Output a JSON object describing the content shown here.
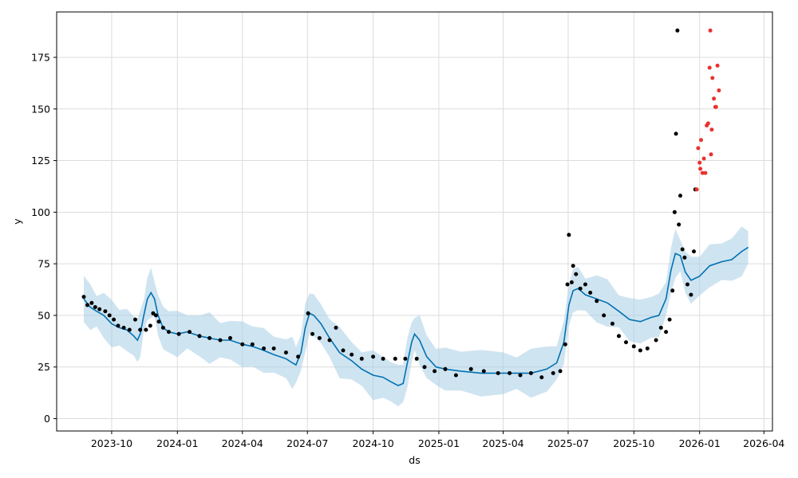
{
  "chart_data": {
    "type": "line",
    "title": "",
    "xlabel": "ds",
    "ylabel": "y",
    "x_ticks": [
      "2023-10",
      "2024-01",
      "2024-04",
      "2024-07",
      "2024-10",
      "2025-01",
      "2025-04",
      "2025-07",
      "2025-10",
      "2026-01",
      "2026-04"
    ],
    "y_ticks": [
      0,
      25,
      50,
      75,
      100,
      125,
      150,
      175
    ],
    "xlim": [
      "2023-07-16",
      "2026-04-13"
    ],
    "ylim": [
      -6,
      197
    ],
    "grid": true,
    "colors": {
      "forecast": "#0072B2",
      "interval": "#A8CDE6",
      "observed": "#000000",
      "outliers": "#E8322F"
    },
    "series": [
      {
        "kind": "line",
        "points": [
          [
            "2023-08-23",
            58
          ],
          [
            "2023-09-01",
            54
          ],
          [
            "2023-09-10",
            52
          ],
          [
            "2023-09-20",
            50
          ],
          [
            "2023-10-01",
            46
          ],
          [
            "2023-10-12",
            44
          ],
          [
            "2023-10-22",
            43
          ],
          [
            "2023-11-01",
            40
          ],
          [
            "2023-11-06",
            38
          ],
          [
            "2023-11-10",
            41
          ],
          [
            "2023-11-15",
            50
          ],
          [
            "2023-11-20",
            58
          ],
          [
            "2023-11-25",
            61
          ],
          [
            "2023-11-30",
            58
          ],
          [
            "2023-12-05",
            50
          ],
          [
            "2023-12-12",
            44
          ],
          [
            "2023-12-20",
            42
          ],
          [
            "2024-01-01",
            41
          ],
          [
            "2024-01-15",
            42
          ],
          [
            "2024-02-01",
            40
          ],
          [
            "2024-02-15",
            39
          ],
          [
            "2024-03-01",
            38
          ],
          [
            "2024-03-15",
            38
          ],
          [
            "2024-04-01",
            36
          ],
          [
            "2024-04-15",
            35
          ],
          [
            "2024-05-01",
            33
          ],
          [
            "2024-05-15",
            31
          ],
          [
            "2024-06-01",
            29
          ],
          [
            "2024-06-10",
            27
          ],
          [
            "2024-06-15",
            26
          ],
          [
            "2024-06-22",
            32
          ],
          [
            "2024-06-28",
            44
          ],
          [
            "2024-07-04",
            51
          ],
          [
            "2024-07-10",
            50
          ],
          [
            "2024-07-20",
            46
          ],
          [
            "2024-08-01",
            39
          ],
          [
            "2024-08-15",
            32
          ],
          [
            "2024-09-01",
            28
          ],
          [
            "2024-09-15",
            24
          ],
          [
            "2024-10-01",
            21
          ],
          [
            "2024-10-15",
            20
          ],
          [
            "2024-10-25",
            18
          ],
          [
            "2024-11-05",
            16
          ],
          [
            "2024-11-12",
            17
          ],
          [
            "2024-11-18",
            27
          ],
          [
            "2024-11-24",
            37
          ],
          [
            "2024-11-28",
            41
          ],
          [
            "2024-12-05",
            38
          ],
          [
            "2024-12-15",
            30
          ],
          [
            "2024-12-28",
            25
          ],
          [
            "2025-01-10",
            24
          ],
          [
            "2025-02-01",
            23
          ],
          [
            "2025-03-01",
            22
          ],
          [
            "2025-04-01",
            22
          ],
          [
            "2025-04-20",
            22
          ],
          [
            "2025-05-10",
            22
          ],
          [
            "2025-06-01",
            24
          ],
          [
            "2025-06-15",
            27
          ],
          [
            "2025-06-25",
            37
          ],
          [
            "2025-07-02",
            55
          ],
          [
            "2025-07-08",
            62
          ],
          [
            "2025-07-15",
            63
          ],
          [
            "2025-07-25",
            60
          ],
          [
            "2025-08-10",
            58
          ],
          [
            "2025-08-25",
            56
          ],
          [
            "2025-09-10",
            52
          ],
          [
            "2025-09-25",
            48
          ],
          [
            "2025-10-10",
            47
          ],
          [
            "2025-10-25",
            49
          ],
          [
            "2025-11-05",
            50
          ],
          [
            "2025-11-15",
            58
          ],
          [
            "2025-11-22",
            72
          ],
          [
            "2025-11-28",
            80
          ],
          [
            "2025-12-05",
            79
          ],
          [
            "2025-12-12",
            71
          ],
          [
            "2025-12-20",
            67
          ],
          [
            "2026-01-01",
            69
          ],
          [
            "2026-01-15",
            74
          ],
          [
            "2026-02-01",
            76
          ],
          [
            "2026-02-15",
            77
          ],
          [
            "2026-03-01",
            81
          ],
          [
            "2026-03-10",
            83
          ]
        ]
      },
      {
        "kind": "scatter",
        "points": [
          [
            "2023-08-23",
            59
          ],
          [
            "2023-08-28",
            55
          ],
          [
            "2023-09-03",
            56
          ],
          [
            "2023-09-08",
            54
          ],
          [
            "2023-09-14",
            53
          ],
          [
            "2023-09-22",
            52
          ],
          [
            "2023-09-28",
            50
          ],
          [
            "2023-10-04",
            48
          ],
          [
            "2023-10-10",
            45
          ],
          [
            "2023-10-18",
            44
          ],
          [
            "2023-10-26",
            43
          ],
          [
            "2023-11-03",
            48
          ],
          [
            "2023-11-10",
            43
          ],
          [
            "2023-11-18",
            43
          ],
          [
            "2023-11-24",
            45
          ],
          [
            "2023-11-28",
            51
          ],
          [
            "2023-12-02",
            50
          ],
          [
            "2023-12-06",
            47
          ],
          [
            "2023-12-12",
            44
          ],
          [
            "2023-12-20",
            42
          ],
          [
            "2024-01-03",
            41
          ],
          [
            "2024-01-18",
            42
          ],
          [
            "2024-02-01",
            40
          ],
          [
            "2024-02-15",
            39
          ],
          [
            "2024-03-01",
            38
          ],
          [
            "2024-03-15",
            39
          ],
          [
            "2024-04-01",
            36
          ],
          [
            "2024-04-15",
            36
          ],
          [
            "2024-05-01",
            34
          ],
          [
            "2024-05-15",
            34
          ],
          [
            "2024-06-01",
            32
          ],
          [
            "2024-06-18",
            30
          ],
          [
            "2024-07-02",
            51
          ],
          [
            "2024-07-08",
            41
          ],
          [
            "2024-07-18",
            39
          ],
          [
            "2024-08-01",
            38
          ],
          [
            "2024-08-10",
            44
          ],
          [
            "2024-08-20",
            33
          ],
          [
            "2024-09-01",
            31
          ],
          [
            "2024-09-15",
            29
          ],
          [
            "2024-10-01",
            30
          ],
          [
            "2024-10-15",
            29
          ],
          [
            "2024-11-01",
            29
          ],
          [
            "2024-11-15",
            29
          ],
          [
            "2024-12-01",
            29
          ],
          [
            "2024-12-12",
            25
          ],
          [
            "2024-12-26",
            23
          ],
          [
            "2025-01-10",
            24
          ],
          [
            "2025-01-25",
            21
          ],
          [
            "2025-02-15",
            24
          ],
          [
            "2025-03-05",
            23
          ],
          [
            "2025-03-25",
            22
          ],
          [
            "2025-04-10",
            22
          ],
          [
            "2025-04-25",
            21
          ],
          [
            "2025-05-10",
            22
          ],
          [
            "2025-05-25",
            20
          ],
          [
            "2025-06-10",
            22
          ],
          [
            "2025-06-20",
            23
          ],
          [
            "2025-06-27",
            36
          ],
          [
            "2025-06-30",
            65
          ],
          [
            "2025-07-02",
            89
          ],
          [
            "2025-07-06",
            66
          ],
          [
            "2025-07-08",
            74
          ],
          [
            "2025-07-12",
            70
          ],
          [
            "2025-07-18",
            63
          ],
          [
            "2025-07-25",
            65
          ],
          [
            "2025-08-01",
            61
          ],
          [
            "2025-08-10",
            57
          ],
          [
            "2025-08-20",
            50
          ],
          [
            "2025-09-01",
            46
          ],
          [
            "2025-09-10",
            40
          ],
          [
            "2025-09-20",
            37
          ],
          [
            "2025-10-01",
            35
          ],
          [
            "2025-10-10",
            33
          ],
          [
            "2025-10-20",
            34
          ],
          [
            "2025-11-01",
            38
          ],
          [
            "2025-11-08",
            44
          ],
          [
            "2025-11-15",
            42
          ],
          [
            "2025-11-20",
            48
          ],
          [
            "2025-11-24",
            62
          ],
          [
            "2025-11-27",
            100
          ],
          [
            "2025-11-29",
            138
          ],
          [
            "2025-12-01",
            188
          ],
          [
            "2025-12-03",
            94
          ],
          [
            "2025-12-05",
            108
          ],
          [
            "2025-12-08",
            82
          ],
          [
            "2025-12-11",
            78
          ],
          [
            "2025-12-15",
            65
          ],
          [
            "2025-12-20",
            60
          ],
          [
            "2025-12-24",
            81
          ],
          [
            "2025-12-26",
            111
          ]
        ]
      },
      {
        "kind": "scatter",
        "points": [
          [
            "2025-12-28",
            111
          ],
          [
            "2025-12-30",
            131
          ],
          [
            "2026-01-01",
            124
          ],
          [
            "2026-01-02",
            121
          ],
          [
            "2026-01-03",
            135
          ],
          [
            "2026-01-05",
            119
          ],
          [
            "2026-01-07",
            126
          ],
          [
            "2026-01-09",
            119
          ],
          [
            "2026-01-11",
            142
          ],
          [
            "2026-01-13",
            143
          ],
          [
            "2026-01-15",
            170
          ],
          [
            "2026-01-16",
            188
          ],
          [
            "2026-01-17",
            128
          ],
          [
            "2026-01-18",
            140
          ],
          [
            "2026-01-19",
            165
          ],
          [
            "2026-01-21",
            155
          ],
          [
            "2026-01-23",
            151
          ],
          [
            "2026-01-24",
            151
          ],
          [
            "2026-01-26",
            171
          ],
          [
            "2026-01-28",
            159
          ]
        ]
      }
    ]
  }
}
